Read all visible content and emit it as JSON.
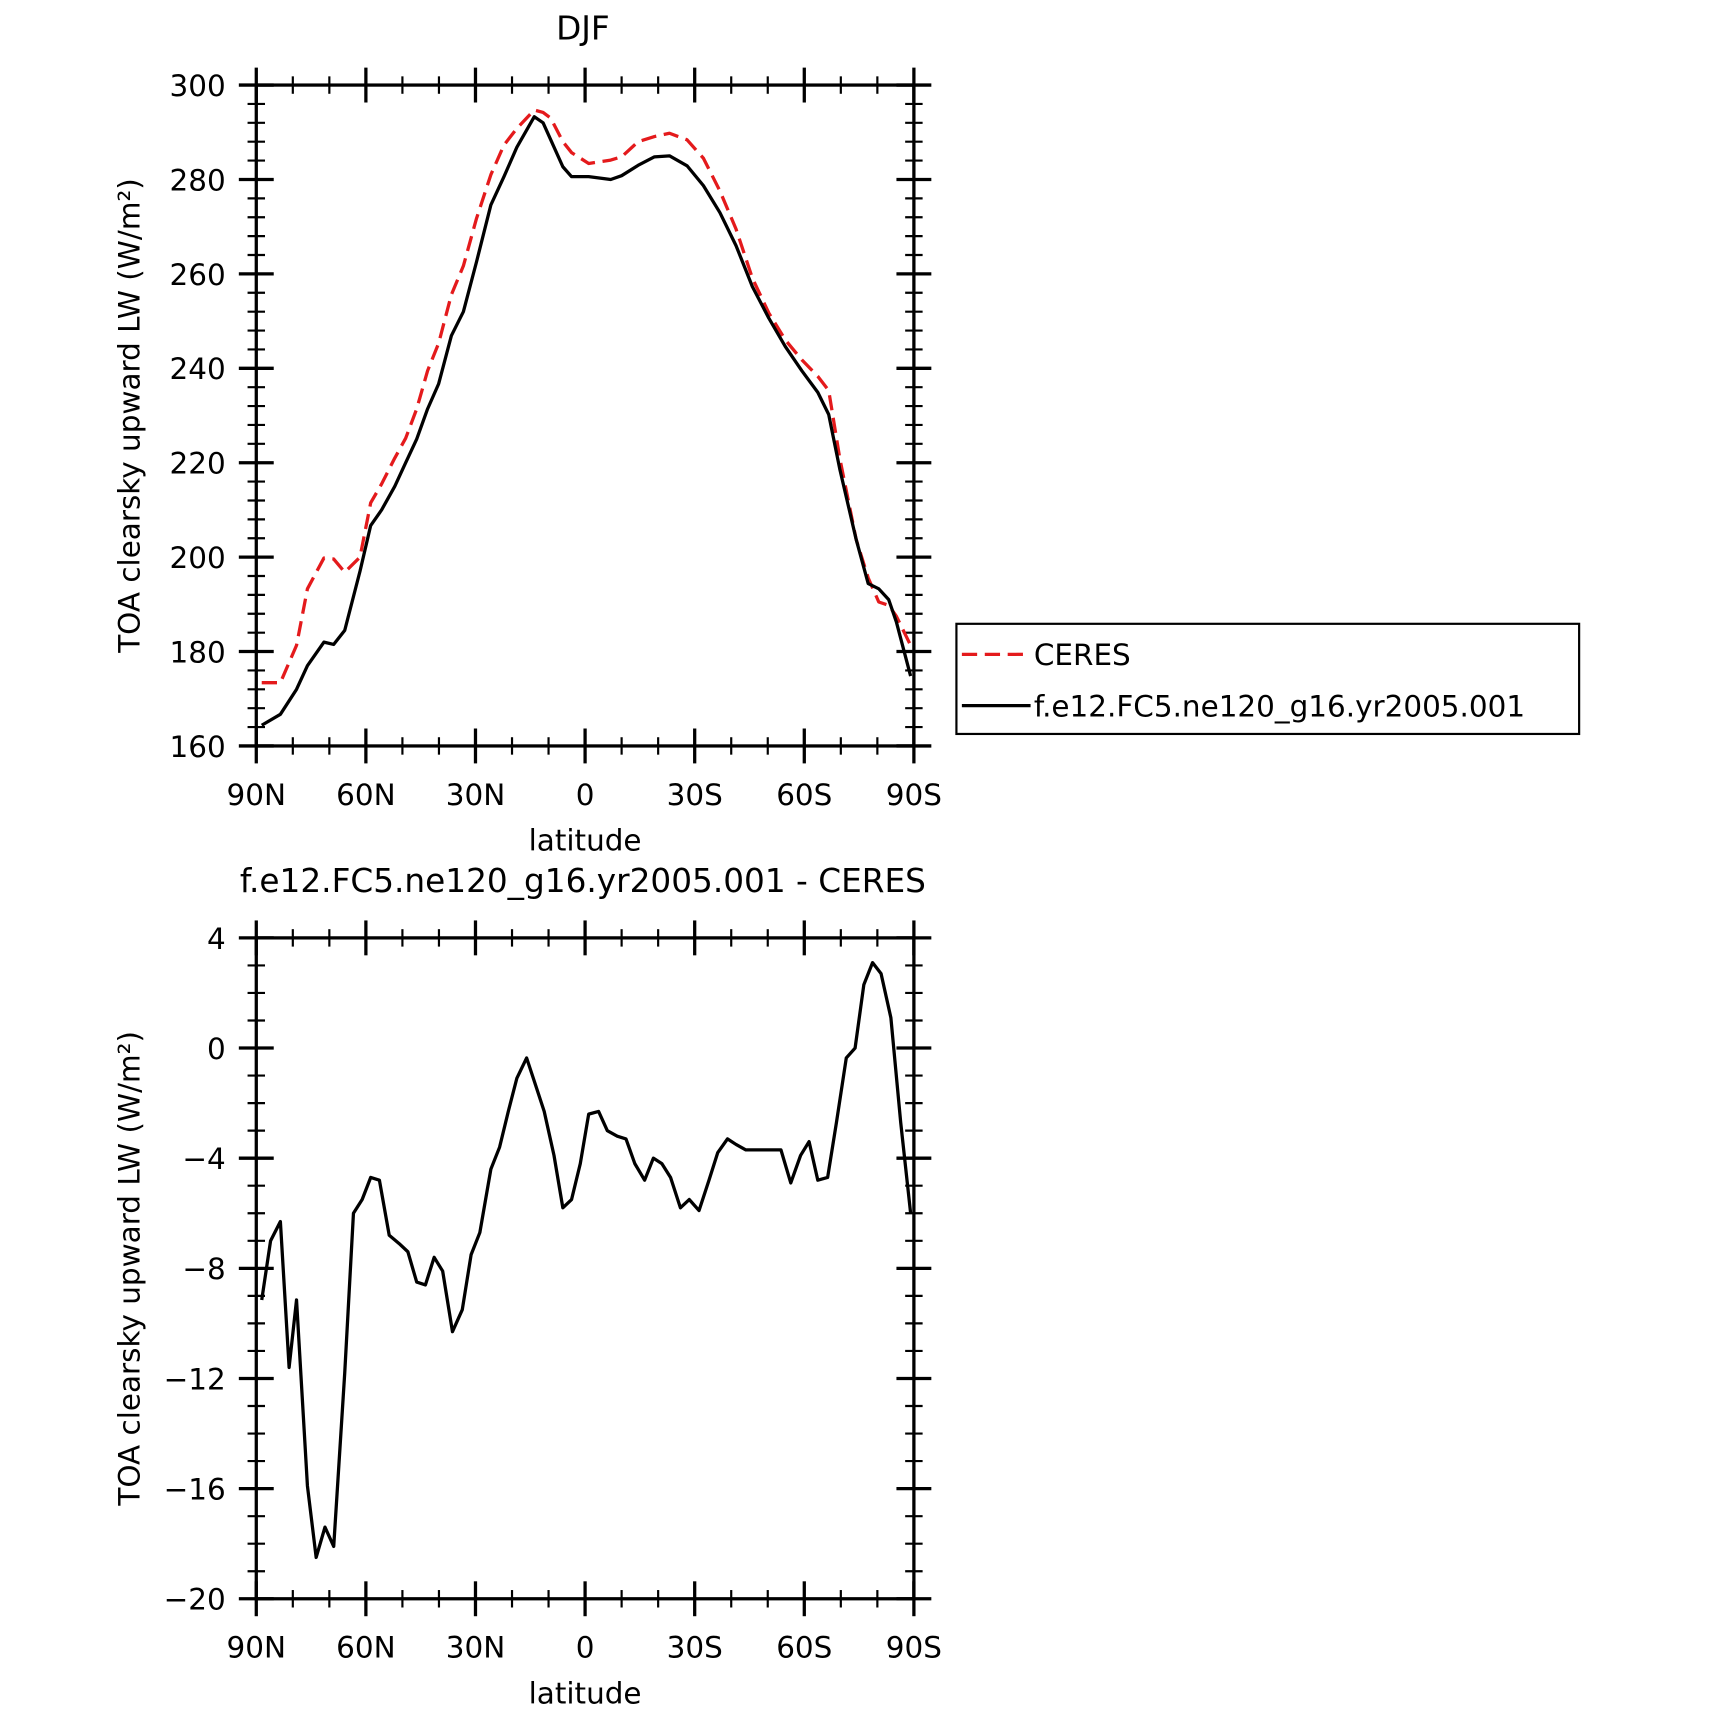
{
  "chart_data": [
    {
      "type": "line",
      "title": "DJF",
      "xlabel": "latitude",
      "ylabel": "TOA clearsky upward LW (W/m²)",
      "xlim": [
        90,
        -90
      ],
      "xticks": [
        {
          "value": 90,
          "label": "90N"
        },
        {
          "value": 60,
          "label": "60N"
        },
        {
          "value": 30,
          "label": "30N"
        },
        0,
        {
          "value": -30,
          "label": "30S"
        },
        {
          "value": -60,
          "label": "60S"
        },
        {
          "value": -90,
          "label": "90S"
        }
      ],
      "xminorticks": [
        80,
        70,
        50,
        40,
        20,
        10,
        -10,
        -20,
        -40,
        -50,
        -70,
        -80
      ],
      "ylim": [
        160,
        300
      ],
      "yticks": [
        160,
        180,
        200,
        220,
        240,
        260,
        280,
        300
      ],
      "yminorticks": [
        164,
        168,
        172,
        176,
        184,
        188,
        192,
        196,
        204,
        208,
        212,
        216,
        224,
        228,
        232,
        236,
        244,
        248,
        252,
        256,
        264,
        268,
        272,
        276,
        284,
        288,
        292,
        296
      ],
      "legend": "right",
      "x": [
        88.5,
        83.4,
        79.0,
        76.0,
        71.5,
        68.8,
        65.8,
        61.6,
        58.7,
        55.7,
        52.1,
        49.1,
        46.1,
        43.1,
        40.1,
        36.6,
        33.3,
        29.7,
        25.8,
        22.2,
        18.7,
        13.9,
        11.5,
        9.4,
        6.1,
        3.7,
        -1.0,
        -7.0,
        -10.0,
        -14.5,
        -19.0,
        -23.1,
        -27.9,
        -32.4,
        -36.9,
        -41.3,
        -45.8,
        -50.3,
        -54.8,
        -59.3,
        -63.7,
        -66.7,
        -69.7,
        -74.2,
        -77.5,
        -80.4,
        -83.1,
        -85.2,
        -89.1
      ],
      "series": [
        {
          "name": "CERES",
          "color": "#e41a1c",
          "line_style": "dashed",
          "values": [
            173.4,
            173.4,
            181.3,
            193.3,
            199.8,
            199.6,
            196.8,
            200.0,
            211.5,
            215.5,
            221.0,
            225.2,
            231.4,
            239.5,
            245.3,
            255.6,
            261.7,
            271.8,
            281.0,
            287.3,
            290.8,
            294.7,
            294.2,
            293.0,
            288.0,
            285.7,
            283.4,
            284.1,
            284.8,
            288.0,
            289.1,
            289.8,
            288.4,
            284.5,
            277.6,
            269.5,
            259.1,
            251.7,
            246.0,
            241.8,
            238.3,
            235.3,
            221.0,
            203.7,
            195.6,
            190.5,
            189.8,
            187.5,
            181.3
          ]
        },
        {
          "name": "f.e12.FC5.ne120_g16.yr2005.001",
          "color": "#000000",
          "line_style": "solid",
          "values": [
            164.4,
            166.7,
            172.0,
            177.0,
            182.0,
            181.5,
            184.5,
            197.0,
            206.7,
            210.0,
            215.0,
            220.0,
            225.0,
            231.4,
            236.7,
            246.9,
            252.0,
            262.6,
            274.6,
            280.6,
            286.8,
            293.3,
            292.0,
            288.4,
            282.7,
            280.6,
            280.6,
            280.0,
            280.8,
            283.0,
            284.8,
            285.0,
            282.9,
            278.7,
            273.0,
            266.0,
            257.3,
            250.6,
            244.6,
            239.5,
            234.9,
            230.2,
            218.7,
            203.7,
            194.4,
            193.3,
            191.0,
            186.3,
            174.8
          ]
        }
      ]
    },
    {
      "type": "line",
      "title": "f.e12.FC5.ne120_g16.yr2005.001 - CERES",
      "xlabel": "latitude",
      "ylabel": "TOA clearsky upward LW (W/m²)",
      "xlim": [
        90,
        -90
      ],
      "xticks": [
        {
          "value": 90,
          "label": "90N"
        },
        {
          "value": 60,
          "label": "60N"
        },
        {
          "value": 30,
          "label": "30N"
        },
        0,
        {
          "value": -30,
          "label": "30S"
        },
        {
          "value": -60,
          "label": "60S"
        },
        {
          "value": -90,
          "label": "90S"
        }
      ],
      "xminorticks": [
        80,
        70,
        50,
        40,
        20,
        10,
        -10,
        -20,
        -40,
        -50,
        -70,
        -80
      ],
      "ylim": [
        -20,
        4
      ],
      "yticks": [
        {
          "value": -20,
          "label": "−20"
        },
        {
          "value": -16,
          "label": "−16"
        },
        {
          "value": -12,
          "label": "−12"
        },
        {
          "value": -8,
          "label": "−8"
        },
        {
          "value": -4,
          "label": "−4"
        },
        0,
        4
      ],
      "yminorticks": [
        -19,
        -18,
        -17,
        -15,
        -14,
        -13,
        -11,
        -10,
        -9,
        -7,
        -6,
        -5,
        -3,
        -2,
        -1,
        1,
        2,
        3
      ],
      "x": [
        88.5,
        86.1,
        83.4,
        81.0,
        79.0,
        76.0,
        73.6,
        71.2,
        68.8,
        65.8,
        63.4,
        61.0,
        58.7,
        56.3,
        53.6,
        50.9,
        48.5,
        46.1,
        43.7,
        41.3,
        39.0,
        36.3,
        33.6,
        31.2,
        28.8,
        25.8,
        23.4,
        21.0,
        18.7,
        16.0,
        13.9,
        11.2,
        8.5,
        6.1,
        3.7,
        1.3,
        -1.0,
        -3.7,
        -6.1,
        -8.8,
        -11.2,
        -13.6,
        -16.3,
        -18.7,
        -21.0,
        -23.4,
        -26.1,
        -28.5,
        -31.2,
        -33.9,
        -36.3,
        -39.0,
        -41.3,
        -44.0,
        -46.4,
        -48.8,
        -51.2,
        -53.6,
        -56.3,
        -59.0,
        -61.3,
        -63.7,
        -66.4,
        -68.8,
        -71.5,
        -73.9,
        -76.3,
        -78.7,
        -81.0,
        -83.7,
        -86.4,
        -89.1
      ],
      "series": [
        {
          "color": "#000000",
          "line_style": "solid",
          "values": [
            -9.15,
            -7.0,
            -6.3,
            -11.6,
            -9.15,
            -15.9,
            -18.5,
            -17.4,
            -18.1,
            -11.8,
            -6.0,
            -5.5,
            -4.7,
            -4.8,
            -6.8,
            -7.1,
            -7.4,
            -8.5,
            -8.6,
            -7.6,
            -8.1,
            -10.3,
            -9.5,
            -7.5,
            -6.7,
            -4.4,
            -3.6,
            -2.3,
            -1.1,
            -0.36,
            -1.2,
            -2.3,
            -3.9,
            -5.8,
            -5.5,
            -4.2,
            -2.4,
            -2.3,
            -3.0,
            -3.2,
            -3.3,
            -4.2,
            -4.8,
            -4.0,
            -4.2,
            -4.7,
            -5.8,
            -5.5,
            -5.9,
            -4.8,
            -3.8,
            -3.3,
            -3.5,
            -3.7,
            -3.7,
            -3.7,
            -3.7,
            -3.7,
            -4.9,
            -3.9,
            -3.4,
            -4.8,
            -4.7,
            -2.7,
            -0.36,
            0.0,
            2.3,
            3.1,
            2.7,
            1.1,
            -2.7,
            -6.0
          ]
        }
      ]
    }
  ]
}
